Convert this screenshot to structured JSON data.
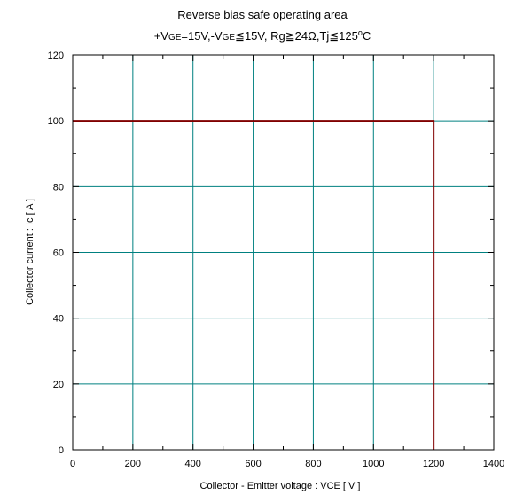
{
  "chart_data": {
    "type": "line",
    "title": "Reverse bias safe operating area",
    "subtitle": {
      "p1": "+V",
      "p2": "GE",
      "p3": "=15V,-V",
      "p4": "GE",
      "p5": "≦",
      "p6": "15V, R",
      "p7": "g",
      "p8": "≧",
      "p9": "24Ω,T",
      "p10": "j",
      "p11": "≦",
      "p12": "125",
      "p13": "o",
      "p14": "C"
    },
    "xlabel": "Collector - Emitter voltage  :  VCE  [ V ]",
    "ylabel": "Collector current  : Ic  [ A ]",
    "xlim": [
      0,
      1400
    ],
    "ylim": [
      0,
      120
    ],
    "x_ticks": [
      0,
      200,
      400,
      600,
      800,
      1000,
      1200,
      1400
    ],
    "y_ticks": [
      0,
      20,
      40,
      60,
      80,
      100,
      120
    ],
    "grid": true,
    "series": [
      {
        "x": [
          0,
          1200,
          1200
        ],
        "y": [
          100,
          100,
          0
        ]
      }
    ],
    "colors": {
      "line": "#800000",
      "grid": "#008080",
      "axis": "#000000"
    }
  }
}
